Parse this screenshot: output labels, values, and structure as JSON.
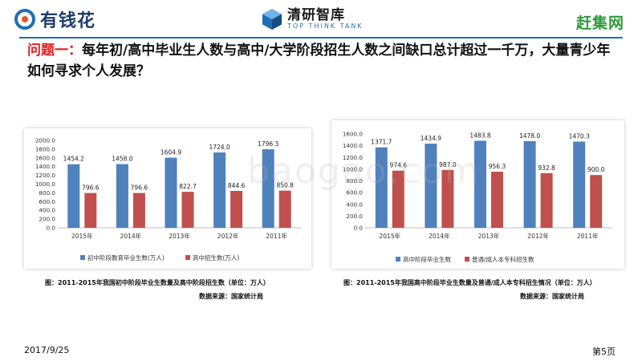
{
  "header": {
    "logo_left_text": "有钱花",
    "logo_mid_cn": "清研智库",
    "logo_mid_en": "TOP THINK TANK",
    "logo_right_text": "赶集网"
  },
  "question": {
    "lead": "问题一：",
    "text": "每年初/高中毕业生人数与高中/大学阶段招生人数之间缺口总计超过一千万，大量青少年如何寻求个人发展？"
  },
  "watermark": "baogao.com",
  "colors": {
    "blue": "#4f81bd",
    "red": "#c0504d",
    "accent": "#1f6fb5"
  },
  "chart_data": [
    {
      "type": "bar",
      "categories": [
        "2015年",
        "2014年",
        "2013年",
        "2012年",
        "2011年"
      ],
      "series": [
        {
          "name": "初中阶段教育毕业生数(万人)",
          "values": [
            1454.2,
            1458.0,
            1604.9,
            1724.0,
            1796.3
          ],
          "labels": [
            "1454.2",
            "1458.0",
            "1604.9",
            "1724.0",
            "1796.3"
          ]
        },
        {
          "name": "高中招生数(万人)",
          "values": [
            796.6,
            796.6,
            822.7,
            844.6,
            850.8
          ],
          "labels": [
            "796.6",
            "796.6",
            "822.7",
            "844.6",
            "850.8"
          ]
        }
      ],
      "ylim": [
        0,
        2000
      ],
      "yticks": [
        "0.0",
        "200.0",
        "400.0",
        "600.0",
        "800.0",
        "1000.0",
        "1200.0",
        "1400.0",
        "1600.0",
        "1800.0",
        "2000.0"
      ],
      "legend": "bottom",
      "caption": "图：2011-2015年我国初中阶段毕业生数量及高中阶段招生数（单位：万人）",
      "source": "数据来源：国家统计局"
    },
    {
      "type": "bar",
      "categories": [
        "2015年",
        "2014年",
        "2013年",
        "2012年",
        "2011年"
      ],
      "series": [
        {
          "name": "高中阶段毕业生数",
          "values": [
            1371.7,
            1434.9,
            1483.8,
            1478.0,
            1470.3
          ],
          "labels": [
            "1371.7",
            "1434.9",
            "1483.8",
            "1478.0",
            "1470.3"
          ]
        },
        {
          "name": "普通/成人本专科招生数",
          "values": [
            974.6,
            987.0,
            956.3,
            932.8,
            900.0
          ],
          "labels": [
            "974.6",
            "987.0",
            "956.3",
            "932.8",
            "900.0"
          ]
        }
      ],
      "ylim": [
        0,
        1600
      ],
      "yticks": [
        "0.0",
        "200.0",
        "400.0",
        "600.0",
        "800.0",
        "1000.0",
        "1200.0",
        "1400.0",
        "1600.0"
      ],
      "legend": "bottom",
      "caption": "图：2011-2015年我国高中阶段毕业生数量及普通/成人本专科招生情况（单位：万人）",
      "source": "数据来源：国家统计局"
    }
  ],
  "footer": {
    "date": "2017/9/25",
    "page": "第5页"
  }
}
